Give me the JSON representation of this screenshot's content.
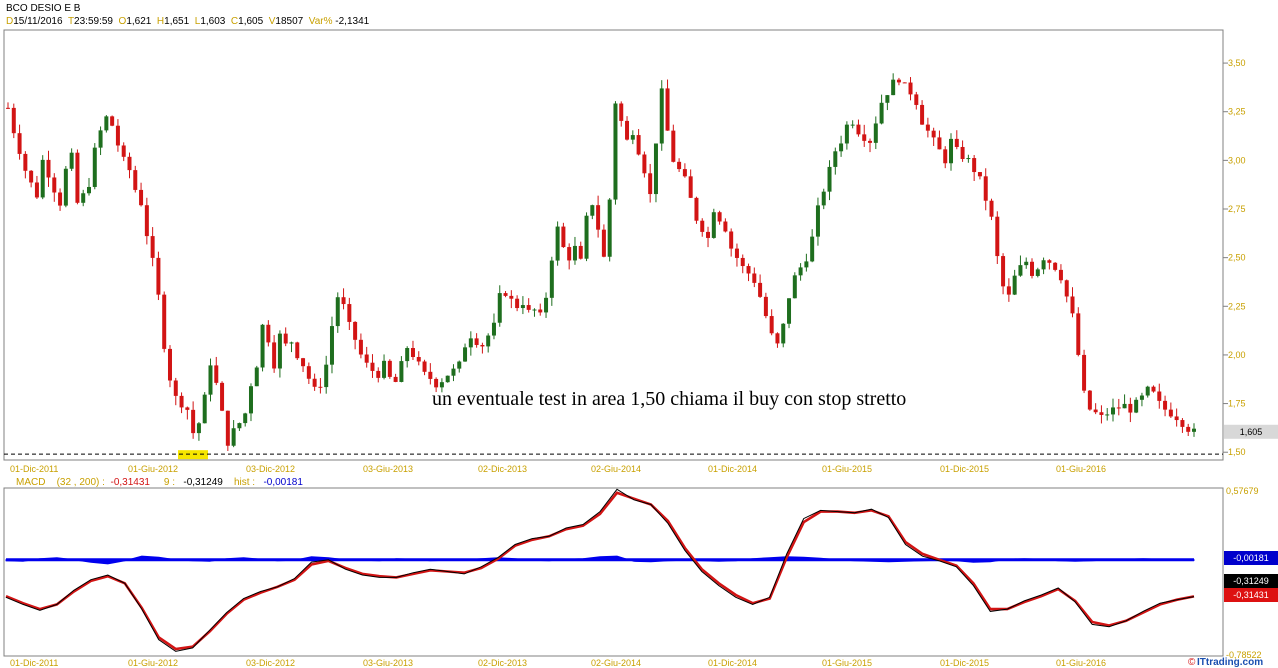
{
  "header": {
    "symbol": "BCO DESIO E B",
    "d_label": "D",
    "date": "15/11/2016",
    "t_label": "T",
    "time": "23:59:59",
    "o_label": "O",
    "open": "1,621",
    "h_label": "H",
    "high": "1,651",
    "l_label": "L",
    "low": "1,603",
    "c_label": "C",
    "close": "1,605",
    "v_label": "V",
    "volume": "18507",
    "var_label": "Var%",
    "var": "-2,1341"
  },
  "macd_header": {
    "name": "MACD",
    "params": "(32 , 200) :",
    "macd_value": "-0,31431",
    "signal_label": "9 :",
    "signal_value": "-0,31249",
    "hist_label": "hist :",
    "hist_value": "-0,00181"
  },
  "annotation": "un eventuale test in area 1,50 chiama il buy con stop stretto",
  "footer": {
    "credit_symbol": "©",
    "credit_text": "ITtrading.com"
  },
  "colors": {
    "up": "#1e6e1e",
    "down": "#d21414",
    "hline": "#000000",
    "highlight": "#f6e600",
    "hist": "#0000ee",
    "macd_line": "#000000",
    "signal_line": "#d21414",
    "axis_text": "#c8a000",
    "tag_hist": "#0000cc",
    "tag_signal": "#000000",
    "tag_macd": "#dd1111",
    "tag_price": "#d8d8d8"
  },
  "chart_data": [
    {
      "type": "candlestick",
      "title": "BCO DESIO E B",
      "y_ticks": [
        "3,50",
        "3,25",
        "3,00",
        "2,75",
        "2,50",
        "2,25",
        "2,00",
        "1,75",
        "1,50"
      ],
      "y_tick_values": [
        3.5,
        3.25,
        3.0,
        2.75,
        2.5,
        2.25,
        2.0,
        1.75,
        1.5
      ],
      "ylim": [
        1.46,
        3.67
      ],
      "x_ticks": [
        "01-Dic-2011",
        "01-Giu-2012",
        "03-Dic-2012",
        "03-Giu-2013",
        "02-Dic-2013",
        "02-Giu-2014",
        "01-Dic-2014",
        "01-Giu-2015",
        "01-Dic-2015",
        "01-Giu-2016"
      ],
      "last_price_tag": "1,605",
      "last_price": 1.605,
      "support_line": 1.49,
      "series": [
        {
          "values": [
            3.27,
            3.15,
            3.05,
            2.95,
            2.88,
            2.82,
            3.0,
            2.93,
            2.85,
            2.78,
            2.95,
            3.02,
            2.78,
            2.82,
            2.88,
            3.05,
            3.15,
            3.22,
            3.18,
            3.08,
            3.0,
            2.95,
            2.85,
            2.78,
            2.62,
            2.48,
            2.3,
            2.05,
            1.88,
            1.78,
            1.75,
            1.72,
            1.6,
            1.65,
            1.78,
            1.96,
            1.85,
            1.7,
            1.55,
            1.61,
            1.65,
            1.7,
            1.85,
            1.95,
            2.15,
            2.08,
            1.95,
            2.1,
            2.05,
            2.07,
            2.0,
            1.95,
            1.88,
            1.82,
            1.85,
            1.95,
            2.15,
            2.3,
            2.25,
            2.15,
            2.08,
            2.0,
            1.95,
            1.92,
            1.9,
            1.95,
            1.88,
            1.86,
            1.95,
            2.04,
            2.0,
            1.95,
            1.9,
            1.88,
            1.85,
            1.87,
            1.9,
            1.92,
            1.95,
            2.05,
            2.1,
            2.07,
            2.05,
            2.1,
            2.15,
            2.3,
            2.32,
            2.28,
            2.25,
            2.27,
            2.22,
            2.23,
            2.2,
            2.3,
            2.5,
            2.65,
            2.55,
            2.5,
            2.55,
            2.48,
            2.7,
            2.78,
            2.65,
            2.5,
            2.8,
            3.3,
            3.2,
            3.1,
            3.15,
            3.05,
            2.95,
            2.82,
            3.1,
            3.35,
            3.15,
            3.0,
            2.95,
            2.9,
            2.8,
            2.7,
            2.65,
            2.6,
            2.75,
            2.7,
            2.65,
            2.55,
            2.5,
            2.45,
            2.42,
            2.38,
            2.3,
            2.2,
            2.1,
            2.05,
            2.15,
            2.3,
            2.4,
            2.45,
            2.5,
            2.6,
            2.75,
            2.85,
            2.95,
            3.05,
            3.1,
            3.18,
            3.2,
            3.15,
            3.12,
            3.1,
            3.2,
            3.3,
            3.35,
            3.4,
            3.42,
            3.38,
            3.35,
            3.3,
            3.2,
            3.15,
            3.1,
            3.05,
            3.0,
            3.1,
            3.05,
            3.02,
            3.0,
            2.95,
            2.9,
            2.8,
            2.7,
            2.5,
            2.35,
            2.3,
            2.4,
            2.45,
            2.48,
            2.42,
            2.45,
            2.5,
            2.48,
            2.45,
            2.4,
            2.3,
            2.2,
            2.0,
            1.8,
            1.72,
            1.7,
            1.68,
            1.7,
            1.72,
            1.73,
            1.74,
            1.72,
            1.75,
            1.78,
            1.82,
            1.8,
            1.75,
            1.72,
            1.7,
            1.68,
            1.65,
            1.62,
            1.605
          ]
        }
      ]
    },
    {
      "type": "macd",
      "title": "MACD",
      "y_ticks": [
        "0,57679",
        "-0,78522"
      ],
      "ylim": [
        -0.78522,
        0.57679
      ],
      "x_ticks": [
        "01-Dic-2011",
        "01-Giu-2012",
        "03-Dic-2012",
        "03-Giu-2013",
        "02-Dic-2013",
        "02-Giu-2014",
        "01-Dic-2014",
        "01-Giu-2015",
        "01-Dic-2015",
        "01-Giu-2016"
      ],
      "value_tags": [
        "-0,00181",
        "-0,31249",
        "-0,31431"
      ],
      "series": [
        {
          "name": "MACD",
          "values": [
            -0.32,
            -0.38,
            -0.43,
            -0.38,
            -0.26,
            -0.17,
            -0.13,
            -0.2,
            -0.42,
            -0.68,
            -0.78,
            -0.75,
            -0.6,
            -0.45,
            -0.33,
            -0.27,
            -0.23,
            -0.16,
            -0.02,
            0.0,
            -0.08,
            -0.13,
            -0.15,
            -0.15,
            -0.11,
            -0.08,
            -0.1,
            -0.12,
            -0.06,
            0.02,
            0.13,
            0.18,
            0.2,
            0.27,
            0.3,
            0.41,
            0.6,
            0.51,
            0.47,
            0.31,
            0.08,
            -0.1,
            -0.22,
            -0.32,
            -0.38,
            -0.32,
            0.05,
            0.35,
            0.42,
            0.41,
            0.4,
            0.43,
            0.36,
            0.13,
            0.03,
            -0.01,
            -0.06,
            -0.22,
            -0.44,
            -0.42,
            -0.35,
            -0.3,
            -0.24,
            -0.36,
            -0.55,
            -0.57,
            -0.52,
            -0.44,
            -0.37,
            -0.34,
            -0.314
          ]
        },
        {
          "name": "Signal",
          "values": [
            -0.31,
            -0.37,
            -0.42,
            -0.38,
            -0.27,
            -0.18,
            -0.14,
            -0.2,
            -0.41,
            -0.66,
            -0.76,
            -0.74,
            -0.61,
            -0.46,
            -0.34,
            -0.28,
            -0.23,
            -0.17,
            -0.04,
            -0.01,
            -0.07,
            -0.12,
            -0.14,
            -0.15,
            -0.12,
            -0.09,
            -0.1,
            -0.11,
            -0.07,
            0.01,
            0.12,
            0.17,
            0.2,
            0.26,
            0.29,
            0.39,
            0.57,
            0.52,
            0.47,
            0.33,
            0.1,
            -0.08,
            -0.2,
            -0.3,
            -0.37,
            -0.33,
            0.02,
            0.32,
            0.41,
            0.41,
            0.4,
            0.42,
            0.37,
            0.15,
            0.05,
            0.0,
            -0.05,
            -0.2,
            -0.42,
            -0.42,
            -0.36,
            -0.31,
            -0.25,
            -0.35,
            -0.53,
            -0.56,
            -0.52,
            -0.45,
            -0.38,
            -0.34,
            -0.312
          ]
        },
        {
          "name": "hist",
          "values": [
            -0.004,
            -0.006,
            0.004,
            0.008,
            0.0,
            -0.01,
            -0.016,
            -0.004,
            0.014,
            0.01,
            0.0,
            -0.004,
            -0.006,
            0.004,
            0.008,
            0.002,
            -0.004,
            -0.002,
            0.012,
            0.008,
            0.0,
            -0.002,
            -0.004,
            0.004,
            0.002,
            -0.004,
            -0.002,
            0.0,
            0.004,
            0.008,
            0.004,
            -0.002,
            -0.004,
            0.002,
            0.004,
            0.012,
            0.014,
            -0.006,
            -0.008,
            -0.004,
            -0.002,
            -0.004,
            -0.006,
            -0.004,
            0.004,
            0.008,
            0.012,
            0.01,
            0.006,
            0.0,
            -0.004,
            -0.006,
            -0.008,
            -0.006,
            -0.004,
            -0.002,
            -0.004,
            -0.01,
            -0.008,
            0.002,
            0.004,
            0.002,
            -0.004,
            -0.006,
            -0.004,
            0.0,
            0.002,
            0.004,
            0.002,
            0.0,
            -0.002
          ]
        }
      ]
    }
  ]
}
